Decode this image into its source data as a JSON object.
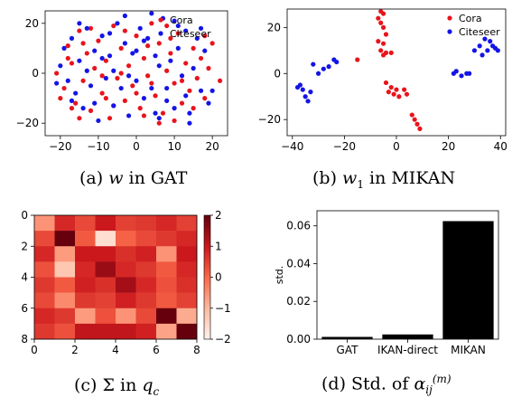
{
  "captions": {
    "a": {
      "prefix": "(a)",
      "symbol": "w",
      "suffix": "in GAT"
    },
    "b": {
      "prefix": "(b)",
      "symbol": "w",
      "sub": "1",
      "suffix": "in MIKAN"
    },
    "c": {
      "prefix": "(c)",
      "symbol": "Σ",
      "mid": "in",
      "symbol2": "q",
      "sub": "c"
    },
    "d": {
      "prefix": "(d) Std. of",
      "symbol": "α",
      "sub": "ij",
      "sup": "(m)"
    }
  },
  "colors": {
    "cora": "#e8141c",
    "citeseer": "#1414e6",
    "bar": "#000000"
  },
  "chart_data": [
    {
      "type": "scatter",
      "title": "",
      "xlim": [
        -24,
        24
      ],
      "ylim": [
        -25,
        25
      ],
      "xticks": [
        -20,
        -10,
        0,
        10,
        20
      ],
      "yticks": [
        -20,
        0,
        20
      ],
      "legend": {
        "placement": "top-right",
        "entries": [
          "Cora",
          "Citeseer"
        ]
      },
      "series": [
        {
          "name": "Cora",
          "color": "#e8141c",
          "points": [
            [
              -21,
              0
            ],
            [
              -19,
              -6
            ],
            [
              -18,
              11
            ],
            [
              -17,
              4
            ],
            [
              -16,
              -12
            ],
            [
              -15,
              17
            ],
            [
              -14,
              -3
            ],
            [
              -13,
              8
            ],
            [
              -12,
              -15
            ],
            [
              -11,
              2
            ],
            [
              -10,
              13
            ],
            [
              -9,
              -8
            ],
            [
              -8,
              5
            ],
            [
              -7,
              -18
            ],
            [
              -6,
              19
            ],
            [
              -5,
              -2
            ],
            [
              -4,
              10
            ],
            [
              -3,
              -11
            ],
            [
              -2,
              3
            ],
            [
              -1,
              -5
            ],
            [
              0,
              15
            ],
            [
              1,
              -14
            ],
            [
              2,
              6
            ],
            [
              3,
              -1
            ],
            [
              4,
              20
            ],
            [
              5,
              -9
            ],
            [
              6,
              12
            ],
            [
              7,
              -16
            ],
            [
              8,
              1
            ],
            [
              9,
              8
            ],
            [
              10,
              -4
            ],
            [
              11,
              16
            ],
            [
              12,
              -12
            ],
            [
              13,
              4
            ],
            [
              14,
              -7
            ],
            [
              15,
              10
            ],
            [
              16,
              -2
            ],
            [
              17,
              6
            ],
            [
              18,
              -10
            ],
            [
              19,
              2
            ],
            [
              20,
              12
            ],
            [
              22,
              -3
            ],
            [
              -20,
              -10
            ],
            [
              -18,
              6
            ],
            [
              -15,
              -18
            ],
            [
              -12,
              18
            ],
            [
              -9,
              -1
            ],
            [
              -6,
              -13
            ],
            [
              -3,
              17
            ],
            [
              0,
              -8
            ],
            [
              3,
              11
            ],
            [
              6,
              -20
            ],
            [
              9,
              14
            ],
            [
              12,
              -3
            ],
            [
              15,
              -14
            ],
            [
              18,
              15
            ],
            [
              -14,
              12
            ],
            [
              -8,
              -10
            ],
            [
              2,
              -17
            ],
            [
              8,
              19
            ],
            [
              -4,
              0
            ],
            [
              4,
              -4
            ],
            [
              10,
              -19
            ],
            [
              -17,
              -14
            ]
          ]
        },
        {
          "name": "Citeseer",
          "color": "#1414e6",
          "points": [
            [
              -20,
              3
            ],
            [
              -19,
              10
            ],
            [
              -18,
              -3
            ],
            [
              -17,
              14
            ],
            [
              -16,
              -8
            ],
            [
              -15,
              5
            ],
            [
              -14,
              -14
            ],
            [
              -13,
              18
            ],
            [
              -12,
              -5
            ],
            [
              -11,
              9
            ],
            [
              -10,
              -19
            ],
            [
              -9,
              15
            ],
            [
              -8,
              -2
            ],
            [
              -7,
              7
            ],
            [
              -6,
              -13
            ],
            [
              -5,
              20
            ],
            [
              -4,
              -6
            ],
            [
              -3,
              12
            ],
            [
              -2,
              -17
            ],
            [
              -1,
              8
            ],
            [
              0,
              -3
            ],
            [
              1,
              18
            ],
            [
              2,
              -10
            ],
            [
              3,
              14
            ],
            [
              4,
              -6
            ],
            [
              5,
              7
            ],
            [
              6,
              -18
            ],
            [
              7,
              22
            ],
            [
              8,
              -6
            ],
            [
              9,
              5
            ],
            [
              10,
              -14
            ],
            [
              11,
              10
            ],
            [
              12,
              -1
            ],
            [
              13,
              17
            ],
            [
              14,
              -16
            ],
            [
              15,
              2
            ],
            [
              16,
              14
            ],
            [
              17,
              -7
            ],
            [
              18,
              9
            ],
            [
              19,
              -12
            ],
            [
              -21,
              -4
            ],
            [
              -17,
              -11
            ],
            [
              -13,
              1
            ],
            [
              -9,
              6
            ],
            [
              -6,
              1
            ],
            [
              -2,
              -1
            ],
            [
              2,
              13
            ],
            [
              5,
              -16
            ],
            [
              8,
              -11
            ],
            [
              11,
              19
            ],
            [
              14,
              -20
            ],
            [
              17,
              18
            ],
            [
              -11,
              -12
            ],
            [
              -7,
              16
            ],
            [
              0,
              9
            ],
            [
              6,
              3
            ],
            [
              13,
              -9
            ],
            [
              20,
              -7
            ],
            [
              -3,
              23
            ],
            [
              4,
              24
            ],
            [
              -15,
              20
            ],
            [
              10,
              21
            ]
          ]
        }
      ]
    },
    {
      "type": "scatter",
      "title": "",
      "xlim": [
        -42,
        42
      ],
      "ylim": [
        -27,
        28
      ],
      "xticks": [
        -40,
        -20,
        0,
        20,
        40
      ],
      "yticks": [
        -20,
        0,
        20
      ],
      "legend": {
        "placement": "top-right",
        "entries": [
          "Cora",
          "Citeseer"
        ]
      },
      "series": [
        {
          "name": "Cora",
          "color": "#e8141c",
          "points": [
            [
              -6,
              27
            ],
            [
              -5,
              26
            ],
            [
              -7,
              24
            ],
            [
              -6,
              22
            ],
            [
              -5,
              20
            ],
            [
              -4,
              17
            ],
            [
              -7,
              14
            ],
            [
              -5,
              13
            ],
            [
              -6,
              10
            ],
            [
              -4,
              9
            ],
            [
              -5,
              8
            ],
            [
              -2,
              9
            ],
            [
              -15,
              6
            ],
            [
              -4,
              -4
            ],
            [
              -2,
              -6
            ],
            [
              -1,
              -9
            ],
            [
              0,
              -7
            ],
            [
              1,
              -10
            ],
            [
              3,
              -7
            ],
            [
              4,
              -9
            ],
            [
              6,
              -18
            ],
            [
              7,
              -20
            ],
            [
              8,
              -22
            ],
            [
              9,
              -24
            ],
            [
              -3,
              -8
            ]
          ]
        },
        {
          "name": "Citeseer",
          "color": "#1414e6",
          "points": [
            [
              -38,
              -6
            ],
            [
              -37,
              -5
            ],
            [
              -36,
              -7
            ],
            [
              -35,
              -10
            ],
            [
              -34,
              -12
            ],
            [
              -33,
              -8
            ],
            [
              -32,
              4
            ],
            [
              -30,
              0
            ],
            [
              -28,
              2
            ],
            [
              -26,
              3
            ],
            [
              -24,
              6
            ],
            [
              -23,
              5
            ],
            [
              22,
              0
            ],
            [
              23,
              1
            ],
            [
              25,
              -1
            ],
            [
              27,
              0
            ],
            [
              28,
              0
            ],
            [
              30,
              10
            ],
            [
              32,
              12
            ],
            [
              34,
              15
            ],
            [
              35,
              10
            ],
            [
              36,
              14
            ],
            [
              37,
              12
            ],
            [
              38,
              11
            ],
            [
              39,
              10
            ],
            [
              33,
              8
            ]
          ]
        }
      ]
    },
    {
      "type": "heatmap",
      "title": "",
      "xlim": [
        0,
        8
      ],
      "ylim": [
        8,
        0
      ],
      "xticks": [
        0,
        2,
        4,
        6,
        8
      ],
      "yticks": [
        0,
        2,
        4,
        6,
        8
      ],
      "colorbar": {
        "ticks": [
          2,
          1,
          0,
          -1,
          -2
        ],
        "range": [
          -2,
          2
        ]
      },
      "values": [
        [
          -0.5,
          0.8,
          0.4,
          1.0,
          0.5,
          0.6,
          0.8,
          0.5
        ],
        [
          0.4,
          2.0,
          0.2,
          -1.6,
          0.1,
          0.4,
          0.6,
          0.8
        ],
        [
          0.8,
          -0.6,
          1.0,
          1.0,
          0.7,
          0.9,
          -0.5,
          1.0
        ],
        [
          0.3,
          -1.2,
          0.8,
          1.5,
          0.8,
          0.6,
          0.2,
          0.8
        ],
        [
          0.6,
          0.2,
          0.9,
          0.7,
          1.4,
          0.8,
          0.3,
          0.7
        ],
        [
          0.4,
          -0.4,
          0.6,
          0.5,
          0.9,
          0.6,
          0.2,
          0.5
        ],
        [
          0.8,
          0.6,
          -0.6,
          0.3,
          -0.5,
          0.4,
          2.0,
          -0.8
        ],
        [
          0.6,
          0.3,
          1.1,
          1.1,
          1.1,
          0.9,
          -0.7,
          2.0
        ]
      ]
    },
    {
      "type": "bar",
      "title": "",
      "categories": [
        "GAT",
        "IKAN-direct",
        "MIKAN"
      ],
      "values": [
        0.0012,
        0.0025,
        0.0625
      ],
      "ylabel": "std.",
      "ylim": [
        0,
        0.068
      ],
      "yticks": [
        0.0,
        0.02,
        0.04,
        0.06
      ],
      "ytick_labels": [
        "0.00",
        "0.02",
        "0.04",
        "0.06"
      ]
    }
  ]
}
